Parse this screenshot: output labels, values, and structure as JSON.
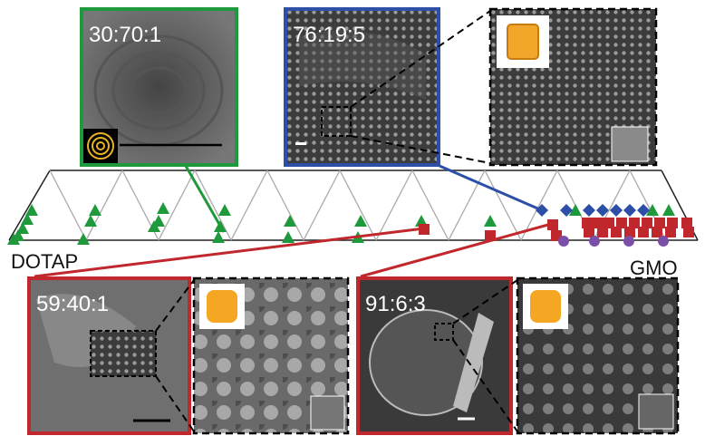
{
  "panels": [
    {
      "label": "30:70:1"
    },
    {
      "label": "76:19:5"
    },
    {
      "label": "59:40:1"
    },
    {
      "label": "91:6:3"
    }
  ],
  "axis": {
    "left": "DOTAP",
    "right": "GMO"
  }
}
